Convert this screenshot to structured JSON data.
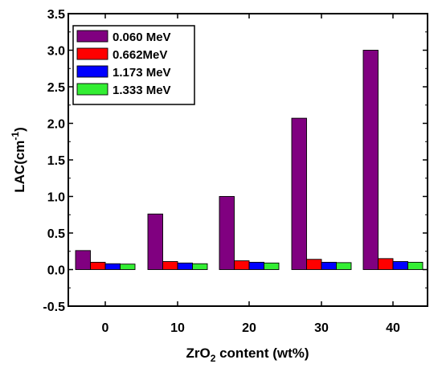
{
  "chart_data": {
    "type": "bar",
    "categories": [
      "0",
      "10",
      "20",
      "30",
      "40"
    ],
    "series": [
      {
        "name": "0.060 MeV",
        "values": [
          0.26,
          0.76,
          1.0,
          2.07,
          3.0
        ],
        "color": "#800080"
      },
      {
        "name": "0.662MeV",
        "values": [
          0.1,
          0.11,
          0.12,
          0.14,
          0.15
        ],
        "color": "#ff0000"
      },
      {
        "name": "1.173 MeV",
        "values": [
          0.08,
          0.09,
          0.1,
          0.1,
          0.11
        ],
        "color": "#0000ff"
      },
      {
        "name": "1.333 MeV",
        "values": [
          0.075,
          0.08,
          0.09,
          0.095,
          0.1
        ],
        "color": "#33ee33"
      }
    ],
    "ylim": [
      -0.5,
      3.5
    ],
    "yticks": [
      "-0.5",
      "0.0",
      "0.5",
      "1.0",
      "1.5",
      "2.0",
      "2.5",
      "3.0",
      "3.5"
    ],
    "ylabel": {
      "base": "LAC(cm",
      "sup": "-1",
      "end": ")"
    },
    "xlabel": {
      "base": "ZrO",
      "sub": "2",
      "end": " content (wt%)"
    },
    "legend_position": "top-left",
    "grid": false
  }
}
